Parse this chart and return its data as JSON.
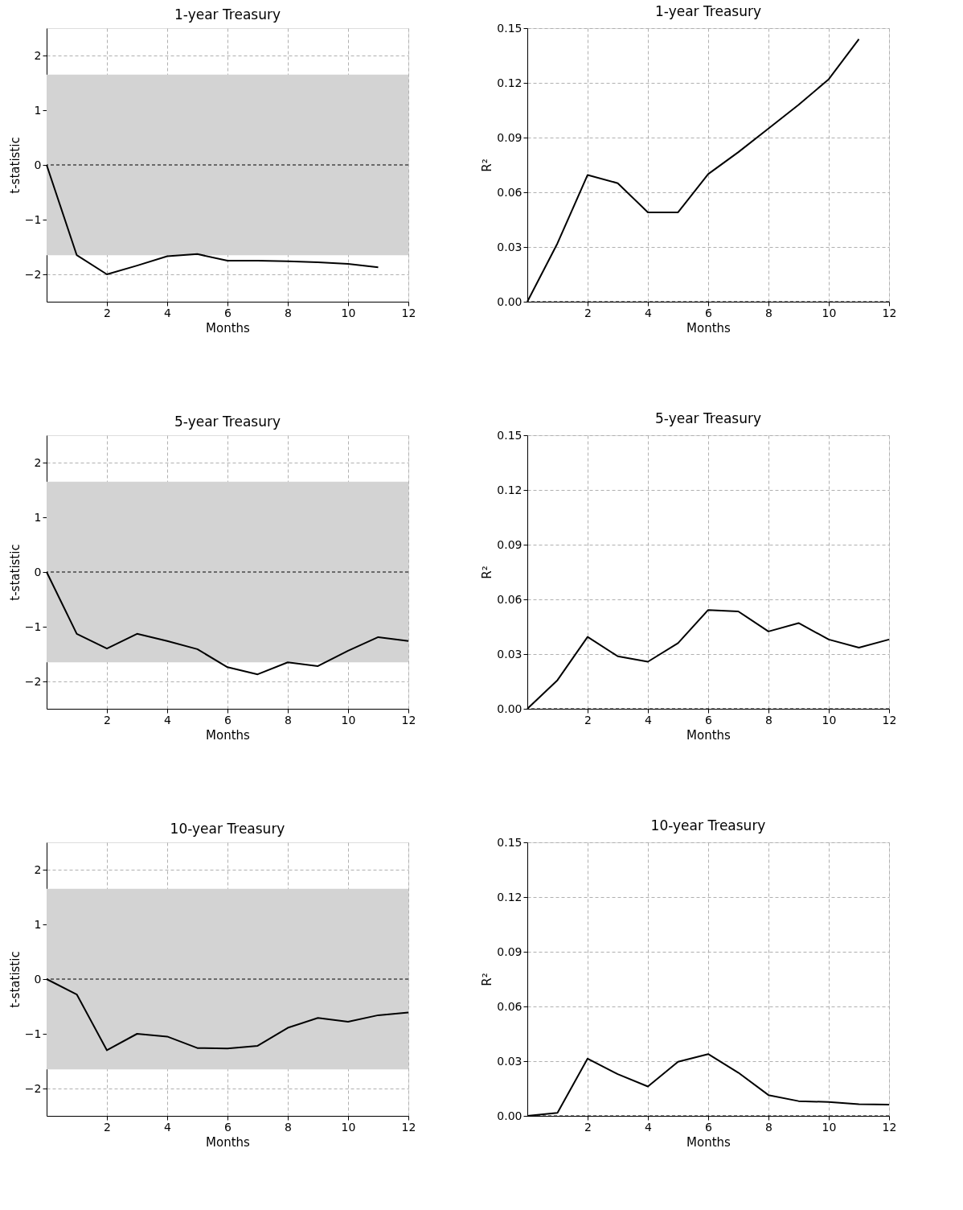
{
  "chart_data": [
    {
      "type": "line",
      "title": "1-year Treasury",
      "xlabel": "Months",
      "ylabel": "t-statistic",
      "x": [
        0,
        1,
        2,
        3,
        4,
        5,
        6,
        7,
        8,
        9,
        10,
        11
      ],
      "series": [
        {
          "color": "#000000",
          "values": [
            0,
            -1.65,
            -2.0,
            -1.84,
            -1.67,
            -1.63,
            -1.75,
            -1.75,
            -1.76,
            -1.78,
            -1.81,
            -1.87
          ]
        }
      ],
      "xlim": [
        0,
        12
      ],
      "xticks": [
        2,
        4,
        6,
        8,
        10,
        12
      ],
      "ylim": [
        -2.5,
        2.5
      ],
      "yticks": [
        {
          "value": -2,
          "label": "−2"
        },
        {
          "value": -1,
          "label": "−1"
        },
        0,
        1,
        2
      ],
      "grid": true,
      "line_style": "solid",
      "marker": "none",
      "bands": [
        {
          "axis": "y",
          "from": -1.65,
          "to": 1.65,
          "color": "#d3d3d3"
        }
      ],
      "ref_lines": [
        {
          "axis": "y",
          "value": 0,
          "color": "#000000",
          "line_style": "dashed"
        }
      ]
    },
    {
      "type": "line",
      "title": "1-year Treasury",
      "xlabel": "Months",
      "ylabel": "R²",
      "x": [
        0,
        1,
        2,
        3,
        4,
        5,
        6,
        7,
        8,
        9,
        10,
        11
      ],
      "series": [
        {
          "color": "#000000",
          "values": [
            0,
            0.032,
            0.0695,
            0.065,
            0.049,
            0.049,
            0.07,
            0.082,
            0.095,
            0.108,
            0.122,
            0.144
          ]
        }
      ],
      "xlim": [
        0,
        12
      ],
      "xticks": [
        2,
        4,
        6,
        8,
        10,
        12
      ],
      "ylim": [
        0,
        0.15
      ],
      "yticks": [
        {
          "value": 0,
          "label": "0.00"
        },
        {
          "value": 0.03,
          "label": "0.03"
        },
        {
          "value": 0.06,
          "label": "0.06"
        },
        {
          "value": 0.09,
          "label": "0.09"
        },
        {
          "value": 0.12,
          "label": "0.12"
        },
        {
          "value": 0.15,
          "label": "0.15"
        }
      ],
      "grid": true,
      "line_style": "solid",
      "marker": "none",
      "ref_lines": [
        {
          "axis": "y",
          "value": 0,
          "color": "#000000",
          "line_style": "dashed"
        }
      ]
    },
    {
      "type": "line",
      "title": "5-year Treasury",
      "xlabel": "Months",
      "ylabel": "t-statistic",
      "x": [
        0,
        1,
        2,
        3,
        4,
        5,
        6,
        7,
        8,
        9,
        10,
        11,
        12
      ],
      "series": [
        {
          "color": "#000000",
          "values": [
            0,
            -1.13,
            -1.4,
            -1.13,
            -1.26,
            -1.41,
            -1.74,
            -1.87,
            -1.65,
            -1.72,
            -1.44,
            -1.19,
            -1.26
          ]
        }
      ],
      "xlim": [
        0,
        12
      ],
      "xticks": [
        2,
        4,
        6,
        8,
        10,
        12
      ],
      "ylim": [
        -2.5,
        2.5
      ],
      "yticks": [
        {
          "value": -2,
          "label": "−2"
        },
        {
          "value": -1,
          "label": "−1"
        },
        0,
        1,
        2
      ],
      "grid": true,
      "line_style": "solid",
      "marker": "none",
      "bands": [
        {
          "axis": "y",
          "from": -1.65,
          "to": 1.65,
          "color": "#d3d3d3"
        }
      ],
      "ref_lines": [
        {
          "axis": "y",
          "value": 0,
          "color": "#000000",
          "line_style": "dashed"
        }
      ]
    },
    {
      "type": "line",
      "title": "5-year Treasury",
      "xlabel": "Months",
      "ylabel": "R²",
      "x": [
        0,
        1,
        2,
        3,
        4,
        5,
        6,
        7,
        8,
        9,
        10,
        11,
        12
      ],
      "series": [
        {
          "color": "#000000",
          "values": [
            0,
            0.0157,
            0.0394,
            0.0288,
            0.0258,
            0.036,
            0.0542,
            0.0534,
            0.0424,
            0.047,
            0.038,
            0.0335,
            0.038
          ]
        }
      ],
      "xlim": [
        0,
        12
      ],
      "xticks": [
        2,
        4,
        6,
        8,
        10,
        12
      ],
      "ylim": [
        0,
        0.15
      ],
      "yticks": [
        {
          "value": 0,
          "label": "0.00"
        },
        {
          "value": 0.03,
          "label": "0.03"
        },
        {
          "value": 0.06,
          "label": "0.06"
        },
        {
          "value": 0.09,
          "label": "0.09"
        },
        {
          "value": 0.12,
          "label": "0.12"
        },
        {
          "value": 0.15,
          "label": "0.15"
        }
      ],
      "grid": true,
      "line_style": "solid",
      "marker": "none",
      "ref_lines": [
        {
          "axis": "y",
          "value": 0,
          "color": "#000000",
          "line_style": "dashed"
        }
      ]
    },
    {
      "type": "line",
      "title": "10-year Treasury",
      "xlabel": "Months",
      "ylabel": "t-statistic",
      "x": [
        0,
        1,
        2,
        3,
        4,
        5,
        6,
        7,
        8,
        9,
        10,
        11,
        12
      ],
      "series": [
        {
          "color": "#000000",
          "values": [
            0,
            -0.28,
            -1.3,
            -1.0,
            -1.05,
            -1.26,
            -1.27,
            -1.22,
            -0.89,
            -0.71,
            -0.78,
            -0.66,
            -0.61
          ]
        }
      ],
      "xlim": [
        0,
        12
      ],
      "xticks": [
        2,
        4,
        6,
        8,
        10,
        12
      ],
      "ylim": [
        -2.5,
        2.5
      ],
      "yticks": [
        {
          "value": -2,
          "label": "−2"
        },
        {
          "value": -1,
          "label": "−1"
        },
        0,
        1,
        2
      ],
      "grid": true,
      "line_style": "solid",
      "marker": "none",
      "bands": [
        {
          "axis": "y",
          "from": -1.65,
          "to": 1.65,
          "color": "#d3d3d3"
        }
      ],
      "ref_lines": [
        {
          "axis": "y",
          "value": 0,
          "color": "#000000",
          "line_style": "dashed"
        }
      ]
    },
    {
      "type": "line",
      "title": "10-year Treasury",
      "xlabel": "Months",
      "ylabel": "R²",
      "x": [
        0,
        1,
        2,
        3,
        4,
        5,
        6,
        7,
        8,
        9,
        10,
        11,
        12
      ],
      "series": [
        {
          "color": "#000000",
          "values": [
            0,
            0.0017,
            0.0314,
            0.0229,
            0.0161,
            0.0297,
            0.0339,
            0.0237,
            0.0114,
            0.0081,
            0.0076,
            0.0064,
            0.0062
          ]
        }
      ],
      "xlim": [
        0,
        12
      ],
      "xticks": [
        2,
        4,
        6,
        8,
        10,
        12
      ],
      "ylim": [
        0,
        0.15
      ],
      "yticks": [
        {
          "value": 0,
          "label": "0.00"
        },
        {
          "value": 0.03,
          "label": "0.03"
        },
        {
          "value": 0.06,
          "label": "0.06"
        },
        {
          "value": 0.09,
          "label": "0.09"
        },
        {
          "value": 0.12,
          "label": "0.12"
        },
        {
          "value": 0.15,
          "label": "0.15"
        }
      ],
      "grid": true,
      "line_style": "solid",
      "marker": "none",
      "ref_lines": [
        {
          "axis": "y",
          "value": 0,
          "color": "#000000",
          "line_style": "dashed"
        }
      ]
    }
  ]
}
